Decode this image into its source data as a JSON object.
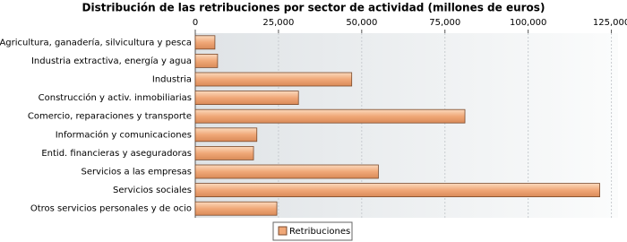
{
  "chart_data": {
    "type": "bar",
    "orientation": "horizontal",
    "title": "Distribución de las retribuciones por sector de actividad (millones de euros)",
    "categories": [
      "Agricultura, ganadería, silvicultura y pesca",
      "Industria extractiva, energía y agua",
      "Industria",
      "Construcción y activ. inmobiliarias",
      "Comercio, reparaciones y transporte",
      "Información y comunicaciones",
      "Entid. financieras y aseguradoras",
      "Servicios a las empresas",
      "Servicios sociales",
      "Otros servicios personales y de ocio"
    ],
    "series": [
      {
        "name": "Retribuciones",
        "color": "#f0a878",
        "values": [
          5900,
          6700,
          47000,
          31000,
          81000,
          18500,
          17500,
          55000,
          121500,
          24500
        ]
      }
    ],
    "xlim": [
      0,
      127000
    ],
    "xticks": [
      0,
      {
        "value": 25000,
        "label": "25,000"
      },
      {
        "value": 50000,
        "label": "50,000"
      },
      {
        "value": 75000,
        "label": "75,000"
      },
      {
        "value": 100000,
        "label": "100,000"
      },
      {
        "value": 125000,
        "label": "125,000"
      }
    ],
    "grid": true,
    "legend": "bottom"
  }
}
